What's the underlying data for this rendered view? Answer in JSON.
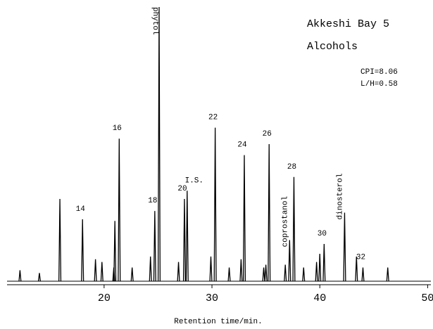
{
  "chart_data": {
    "type": "chromatogram",
    "title": "Akkeshi Bay 5",
    "subtitle": "Alcohols",
    "annotations": [
      "CPI=8.06",
      "L/H=0.58"
    ],
    "x_label": "Retention time/min.",
    "xlim": [
      11,
      50.3
    ],
    "xticks": [
      20,
      30,
      40,
      50
    ],
    "ylim": [
      0,
      100
    ],
    "color": "#000000",
    "x": [
      12.2,
      14.0,
      15.9,
      18.0,
      19.2,
      19.8,
      20.9,
      21.0,
      21.4,
      22.6,
      24.3,
      24.7,
      25.1,
      26.9,
      27.45,
      27.7,
      29.9,
      30.3,
      31.6,
      32.7,
      33.0,
      34.8,
      35.0,
      35.3,
      36.8,
      37.2,
      37.6,
      38.5,
      39.7,
      40.0,
      40.4,
      42.3,
      43.4,
      44.0,
      46.3
    ],
    "values": [
      4,
      3,
      30,
      22.6,
      8,
      7,
      5,
      22,
      52,
      5,
      9,
      25.6,
      100,
      7,
      30,
      33,
      9,
      56,
      5,
      8,
      46,
      5,
      6,
      50,
      6,
      15,
      38,
      5,
      7,
      10,
      13.6,
      25,
      9,
      5,
      5
    ],
    "labels": [
      null,
      null,
      null,
      "14",
      null,
      null,
      null,
      null,
      "16",
      null,
      null,
      "18",
      "phytol",
      null,
      "20",
      "I.S.",
      null,
      "22",
      null,
      null,
      "24",
      null,
      null,
      "26",
      null,
      "coprostanol",
      "28",
      null,
      null,
      null,
      "30",
      "dinosterol",
      null,
      "32",
      null
    ]
  }
}
